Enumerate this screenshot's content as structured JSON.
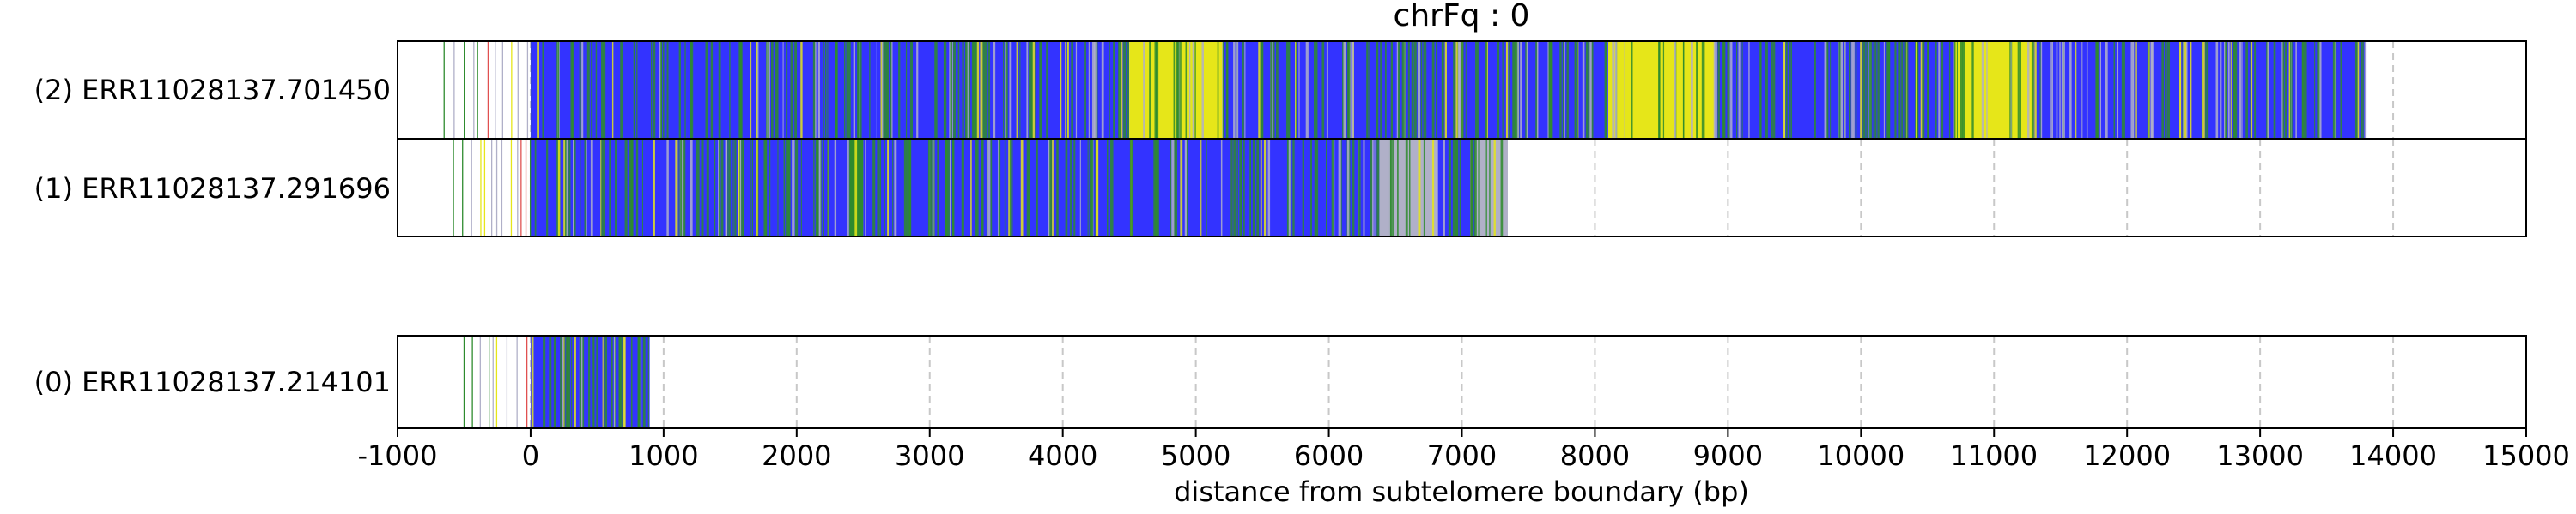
{
  "chart_data": {
    "type": "track-plot",
    "title": "chrFq : 0",
    "xlabel": "distance from subtelomere boundary (bp)",
    "xlim": [
      -1000,
      15000
    ],
    "xticks": [
      -1000,
      0,
      1000,
      2000,
      3000,
      4000,
      5000,
      6000,
      7000,
      8000,
      9000,
      10000,
      11000,
      12000,
      13000,
      14000,
      15000
    ],
    "xtick_labels": [
      "-1000",
      "0",
      "1000",
      "2000",
      "3000",
      "4000",
      "5000",
      "6000",
      "7000",
      "8000",
      "9000",
      "10000",
      "11000",
      "12000",
      "13000",
      "14000",
      "15000"
    ],
    "grid": "vertical dashed",
    "colors": {
      "blue": "#3333ff",
      "green": "#2e8b2e",
      "yellow": "#e6e619",
      "grey": "#b0b0c8",
      "red": "#e05050",
      "grid": "#c8c8c8"
    },
    "reads": [
      {
        "label": "(2) ERR11028137.701450",
        "start": -650,
        "end": 13820,
        "segments": [
          {
            "from": 0,
            "to": 1800,
            "color": "blue"
          },
          {
            "from": 1800,
            "to": 2600,
            "color": "blue"
          },
          {
            "from": 2600,
            "to": 4500,
            "color": "blue"
          },
          {
            "from": 4500,
            "to": 5200,
            "color": "yellow"
          },
          {
            "from": 5200,
            "to": 6500,
            "color": "blue"
          },
          {
            "from": 6500,
            "to": 7300,
            "color": "blue"
          },
          {
            "from": 7300,
            "to": 8100,
            "color": "blue"
          },
          {
            "from": 8100,
            "to": 8900,
            "color": "yellow"
          },
          {
            "from": 8900,
            "to": 10700,
            "color": "blue"
          },
          {
            "from": 10700,
            "to": 11300,
            "color": "yellow"
          },
          {
            "from": 11300,
            "to": 12700,
            "color": "blue"
          },
          {
            "from": 12700,
            "to": 13800,
            "color": "blue"
          }
        ]
      },
      {
        "label": "(1) ERR11028137.291696",
        "start": -580,
        "end": 7350,
        "segments": [
          {
            "from": 0,
            "to": 2400,
            "color": "blue"
          },
          {
            "from": 2400,
            "to": 2500,
            "color": "green"
          },
          {
            "from": 2500,
            "to": 6380,
            "color": "blue"
          },
          {
            "from": 6380,
            "to": 6820,
            "color": "grey"
          },
          {
            "from": 6820,
            "to": 7100,
            "color": "blue"
          },
          {
            "from": 7100,
            "to": 7350,
            "color": "grey"
          }
        ]
      },
      {
        "label": "(0) ERR11028137.214101",
        "start": -500,
        "end": 900,
        "segments": [
          {
            "from": 0,
            "to": 900,
            "color": "blue"
          }
        ]
      }
    ]
  }
}
